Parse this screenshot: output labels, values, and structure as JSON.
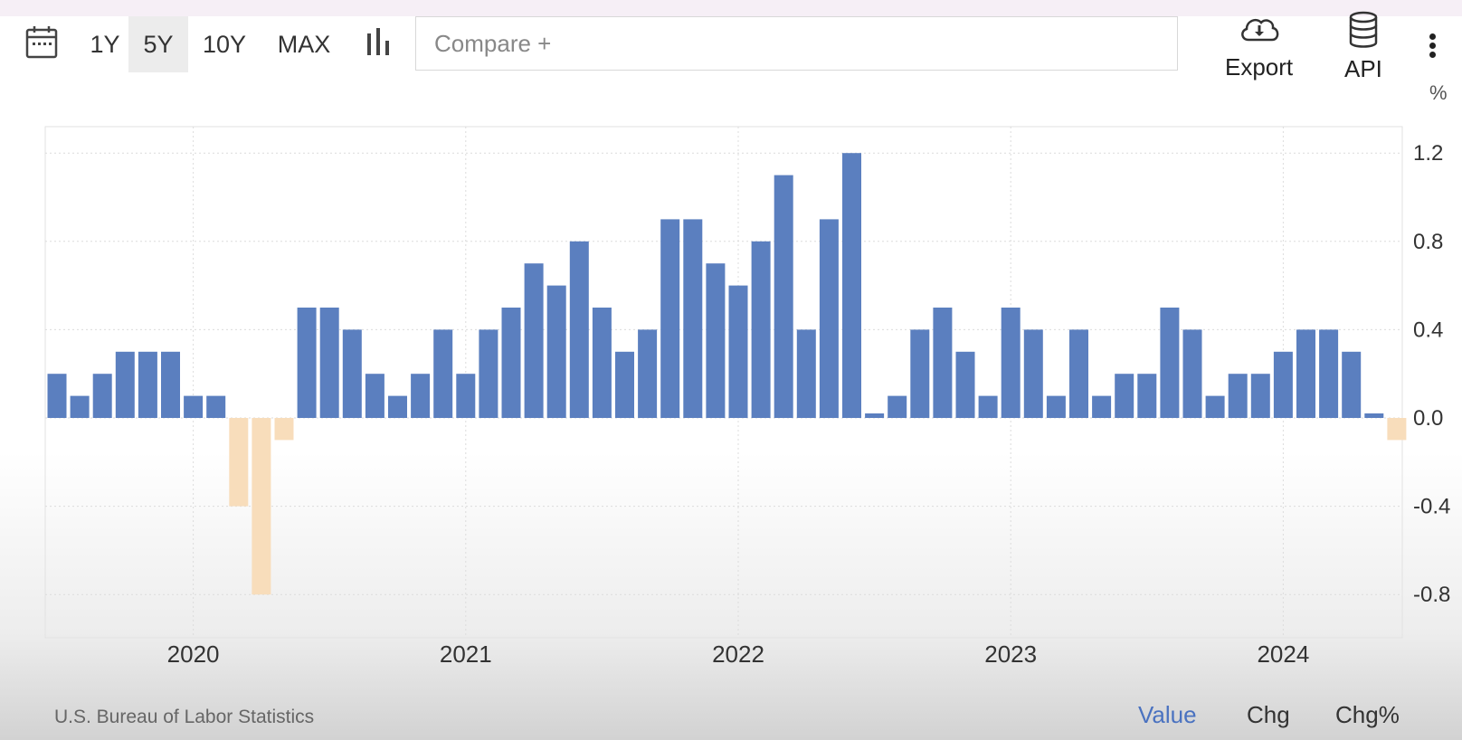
{
  "toolbar": {
    "ranges": [
      "1Y",
      "5Y",
      "10Y",
      "MAX"
    ],
    "selected_range": "5Y",
    "compare_placeholder": "Compare +",
    "export_label": "Export",
    "api_label": "API",
    "icons": [
      "calendar-icon",
      "bar-chart-icon",
      "cloud-download-icon",
      "database-icon",
      "more-vertical-icon"
    ]
  },
  "chart_data": {
    "type": "bar",
    "unit": "%",
    "x_tick_labels": [
      "2020",
      "2021",
      "2022",
      "2023",
      "2024"
    ],
    "y_tick_labels": [
      "1.2",
      "0.8",
      "0.4",
      "0.0",
      "-0.4",
      "-0.8"
    ],
    "ylim": [
      -1.0,
      1.3
    ],
    "grid": true,
    "colors": {
      "positive": "#5b7fbf",
      "negative": "#f8ddbb"
    },
    "categories": [
      "2019-07",
      "2019-08",
      "2019-09",
      "2019-10",
      "2019-11",
      "2019-12",
      "2020-01",
      "2020-02",
      "2020-03",
      "2020-04",
      "2020-05",
      "2020-06",
      "2020-07",
      "2020-08",
      "2020-09",
      "2020-10",
      "2020-11",
      "2020-12",
      "2021-01",
      "2021-02",
      "2021-03",
      "2021-04",
      "2021-05",
      "2021-06",
      "2021-07",
      "2021-08",
      "2021-09",
      "2021-10",
      "2021-11",
      "2021-12",
      "2022-01",
      "2022-02",
      "2022-03",
      "2022-04",
      "2022-05",
      "2022-06",
      "2022-07",
      "2022-08",
      "2022-09",
      "2022-10",
      "2022-11",
      "2022-12",
      "2023-01",
      "2023-02",
      "2023-03",
      "2023-04",
      "2023-05",
      "2023-06",
      "2023-07",
      "2023-08",
      "2023-09",
      "2023-10",
      "2023-11",
      "2023-12",
      "2024-01",
      "2024-02",
      "2024-03",
      "2024-04",
      "2024-05",
      "2024-06"
    ],
    "values": [
      0.2,
      0.1,
      0.2,
      0.3,
      0.3,
      0.3,
      0.1,
      0.1,
      -0.4,
      -0.8,
      -0.1,
      0.5,
      0.5,
      0.4,
      0.2,
      0.1,
      0.2,
      0.4,
      0.2,
      0.4,
      0.5,
      0.7,
      0.6,
      0.8,
      0.5,
      0.3,
      0.4,
      0.9,
      0.9,
      0.7,
      0.6,
      0.8,
      1.1,
      0.4,
      0.9,
      1.2,
      0.0,
      0.1,
      0.4,
      0.5,
      0.3,
      0.1,
      0.5,
      0.4,
      0.1,
      0.4,
      0.1,
      0.2,
      0.2,
      0.5,
      0.4,
      0.1,
      0.2,
      0.2,
      0.3,
      0.4,
      0.4,
      0.3,
      0.0,
      -0.1
    ]
  },
  "footer": {
    "source": "U.S. Bureau of Labor Statistics",
    "modes": [
      "Value",
      "Chg",
      "Chg%"
    ],
    "selected_mode": "Value",
    "active_color": "#4a72c0"
  }
}
